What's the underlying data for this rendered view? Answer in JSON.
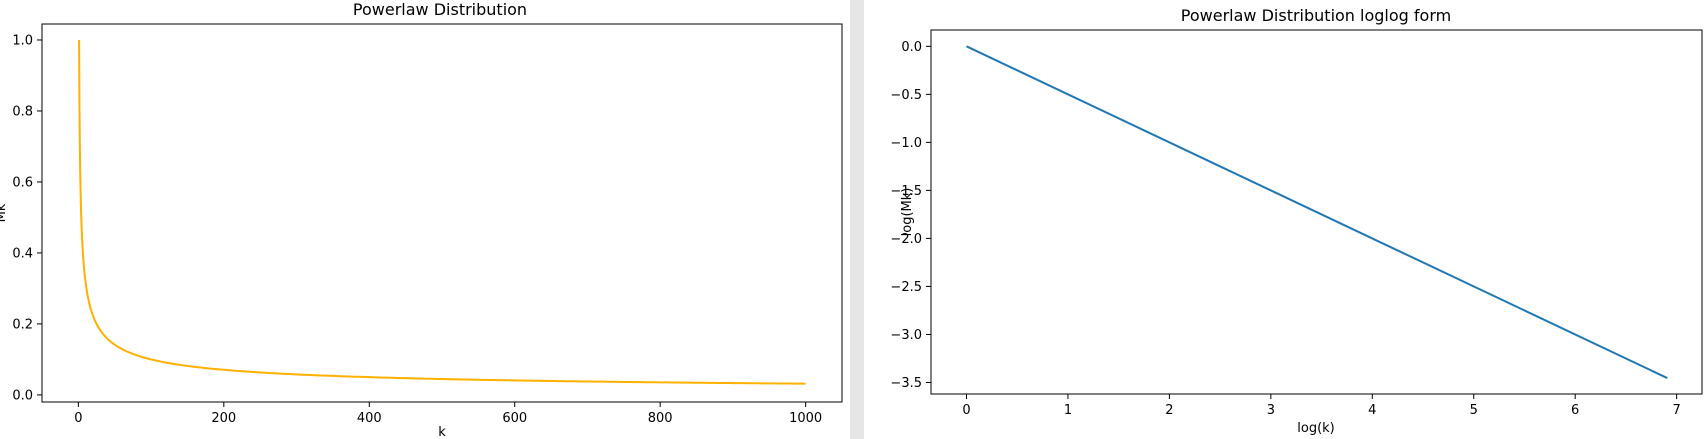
{
  "chart_data": [
    {
      "type": "line",
      "title": "Powerlaw Distribution",
      "xlabel": "k",
      "ylabel": "Mk",
      "xlim": [
        -50,
        1050
      ],
      "ylim": [
        -0.02,
        1.045
      ],
      "x_ticks": [
        0,
        200,
        400,
        600,
        800,
        1000
      ],
      "x_tick_labels": [
        "0",
        "200",
        "400",
        "600",
        "800",
        "1000"
      ],
      "y_ticks": [
        0.0,
        0.2,
        0.4,
        0.6,
        0.8,
        1.0
      ],
      "y_tick_labels": [
        "0.0",
        "0.2",
        "0.4",
        "0.6",
        "0.8",
        "1.0"
      ],
      "grid": false,
      "series": [
        {
          "color": "#ffb000",
          "x": [
            1,
            2,
            3,
            4,
            5,
            7,
            10,
            15,
            20,
            30,
            40,
            50,
            75,
            100,
            150,
            200,
            300,
            400,
            500,
            600,
            700,
            800,
            900,
            1000
          ],
          "y": [
            1.0,
            0.7071,
            0.5774,
            0.5,
            0.4472,
            0.378,
            0.3162,
            0.2582,
            0.2236,
            0.1826,
            0.1581,
            0.1414,
            0.1155,
            0.1,
            0.0816,
            0.0707,
            0.0577,
            0.05,
            0.0447,
            0.0408,
            0.0378,
            0.0354,
            0.0333,
            0.0316
          ]
        }
      ]
    },
    {
      "type": "line",
      "title": "Powerlaw Distribution loglog form",
      "xlabel": "log(k)",
      "ylabel": "log(Mk)",
      "xlim": [
        -0.35,
        7.25
      ],
      "ylim": [
        -3.62,
        0.17
      ],
      "x_ticks": [
        0,
        1,
        2,
        3,
        4,
        5,
        6,
        7
      ],
      "x_tick_labels": [
        "0",
        "1",
        "2",
        "3",
        "4",
        "5",
        "6",
        "7"
      ],
      "y_ticks": [
        0.0,
        -0.5,
        -1.0,
        -1.5,
        -2.0,
        -2.5,
        -3.0,
        -3.5
      ],
      "y_tick_labels": [
        "0.0",
        "−0.5",
        "−1.0",
        "−1.5",
        "−2.0",
        "−2.5",
        "−3.0",
        "−3.5"
      ],
      "grid": false,
      "series": [
        {
          "color": "#1f77b4",
          "x": [
            0.0,
            6.9078
          ],
          "y": [
            0.0,
            -3.4539
          ]
        }
      ]
    }
  ]
}
